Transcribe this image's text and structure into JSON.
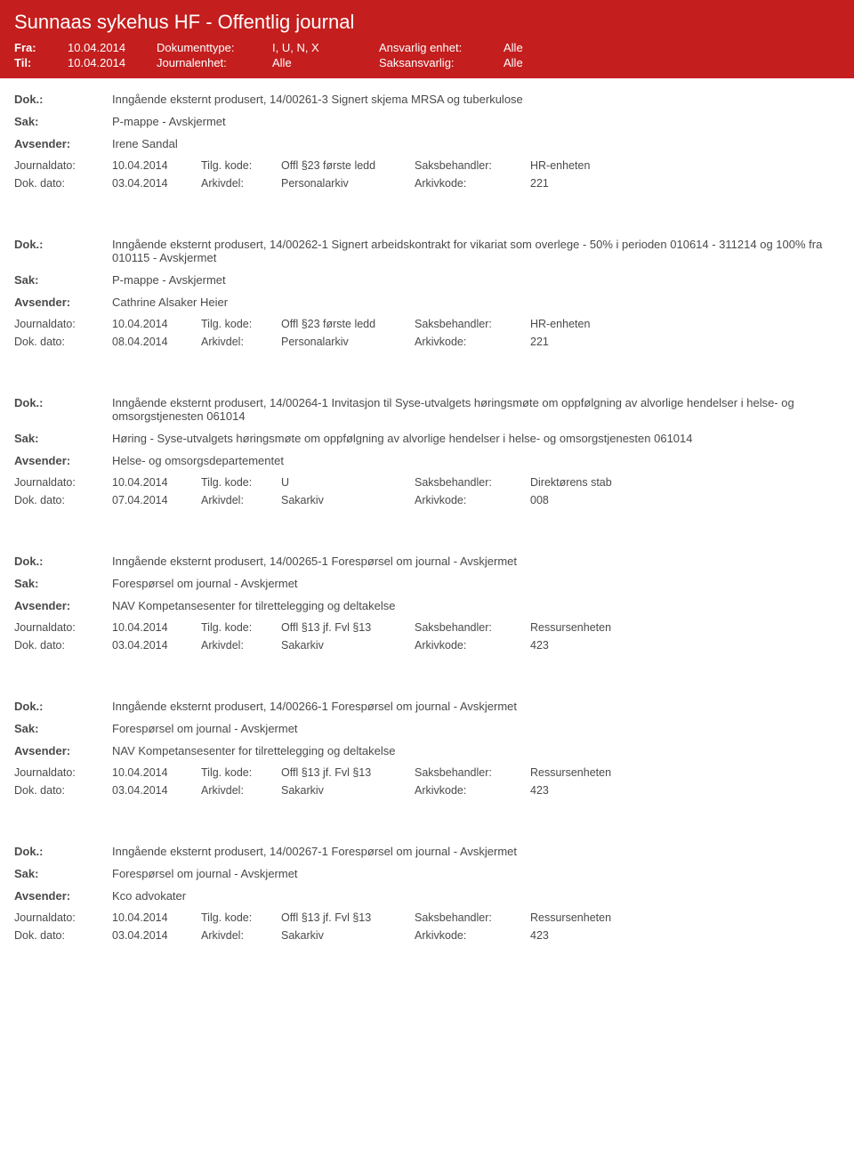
{
  "header": {
    "title": "Sunnaas sykehus HF - Offentlig journal",
    "fra_label": "Fra:",
    "fra_value": "10.04.2014",
    "til_label": "Til:",
    "til_value": "10.04.2014",
    "doktype_label": "Dokumenttype:",
    "doktype_value": "I, U, N, X",
    "journalenhet_label": "Journalenhet:",
    "journalenhet_value": "Alle",
    "ansvarlig_label": "Ansvarlig enhet:",
    "ansvarlig_value": "Alle",
    "saksansvarlig_label": "Saksansvarlig:",
    "saksansvarlig_value": "Alle"
  },
  "labels": {
    "dok": "Dok.:",
    "sak": "Sak:",
    "avsender": "Avsender:",
    "journaldato": "Journaldato:",
    "dokdato": "Dok. dato:",
    "tilgkode": "Tilg. kode:",
    "arkivdel": "Arkivdel:",
    "saksbehandler": "Saksbehandler:",
    "arkivkode": "Arkivkode:"
  },
  "entries": [
    {
      "dok": "Inngående eksternt produsert, 14/00261-3 Signert skjema MRSA og tuberkulose",
      "sak": "P-mappe - Avskjermet",
      "avsender": "Irene Sandal",
      "journaldato": "10.04.2014",
      "tilgkode": "Offl §23 første ledd",
      "saksbehandler": "HR-enheten",
      "dokdato": "03.04.2014",
      "arkivdel": "Personalarkiv",
      "arkivkode": "221"
    },
    {
      "dok": "Inngående eksternt produsert, 14/00262-1 Signert arbeidskontrakt for vikariat som overlege - 50% i perioden 010614 - 311214 og 100% fra 010115 - Avskjermet",
      "sak": "P-mappe - Avskjermet",
      "avsender": "Cathrine Alsaker Heier",
      "journaldato": "10.04.2014",
      "tilgkode": "Offl §23 første ledd",
      "saksbehandler": "HR-enheten",
      "dokdato": "08.04.2014",
      "arkivdel": "Personalarkiv",
      "arkivkode": "221"
    },
    {
      "dok": "Inngående eksternt produsert, 14/00264-1 Invitasjon til Syse-utvalgets høringsmøte om oppfølgning av alvorlige hendelser i helse- og omsorgstjenesten 061014",
      "sak": "Høring - Syse-utvalgets høringsmøte om oppfølgning av alvorlige hendelser i helse- og omsorgstjenesten 061014",
      "avsender": "Helse- og omsorgsdepartementet",
      "journaldato": "10.04.2014",
      "tilgkode": "U",
      "saksbehandler": "Direktørens stab",
      "dokdato": "07.04.2014",
      "arkivdel": "Sakarkiv",
      "arkivkode": "008"
    },
    {
      "dok": "Inngående eksternt produsert, 14/00265-1 Forespørsel om journal - Avskjermet",
      "sak": "Forespørsel om journal - Avskjermet",
      "avsender": "NAV Kompetansesenter for tilrettelegging og deltakelse",
      "journaldato": "10.04.2014",
      "tilgkode": "Offl §13 jf. Fvl §13",
      "saksbehandler": "Ressursenheten",
      "dokdato": "03.04.2014",
      "arkivdel": "Sakarkiv",
      "arkivkode": "423"
    },
    {
      "dok": "Inngående eksternt produsert, 14/00266-1 Forespørsel om journal - Avskjermet",
      "sak": "Forespørsel om journal - Avskjermet",
      "avsender": "NAV Kompetansesenter for tilrettelegging og deltakelse",
      "journaldato": "10.04.2014",
      "tilgkode": "Offl §13 jf. Fvl §13",
      "saksbehandler": "Ressursenheten",
      "dokdato": "03.04.2014",
      "arkivdel": "Sakarkiv",
      "arkivkode": "423"
    },
    {
      "dok": "Inngående eksternt produsert, 14/00267-1 Forespørsel om journal - Avskjermet",
      "sak": "Forespørsel om journal - Avskjermet",
      "avsender": "Kco advokater",
      "journaldato": "10.04.2014",
      "tilgkode": "Offl §13 jf. Fvl §13",
      "saksbehandler": "Ressursenheten",
      "dokdato": "03.04.2014",
      "arkivdel": "Sakarkiv",
      "arkivkode": "423"
    }
  ]
}
